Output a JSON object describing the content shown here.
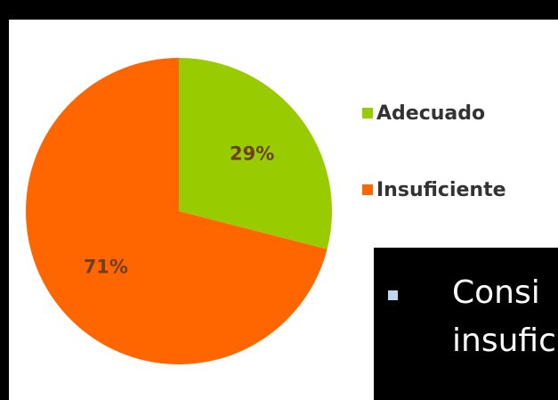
{
  "chart_data": {
    "type": "pie",
    "title": "",
    "series": [
      {
        "name": "Adecuado",
        "value": 29,
        "label": "29%",
        "color": "#99cc00"
      },
      {
        "name": "Insuficiente",
        "value": 71,
        "label": "71%",
        "color": "#ff6600"
      }
    ],
    "start_angle": "12 o'clock, clockwise",
    "legend_placement": "right"
  },
  "text_box": {
    "bullet_icon": "square-bullet-icon",
    "lines": [
      "Consi",
      "insufic"
    ]
  },
  "colors": {
    "background": "#000000",
    "panel": "#ffffff",
    "label_text": "#6b3f1f",
    "legend_text": "#333333",
    "box_text": "#ffffff"
  }
}
